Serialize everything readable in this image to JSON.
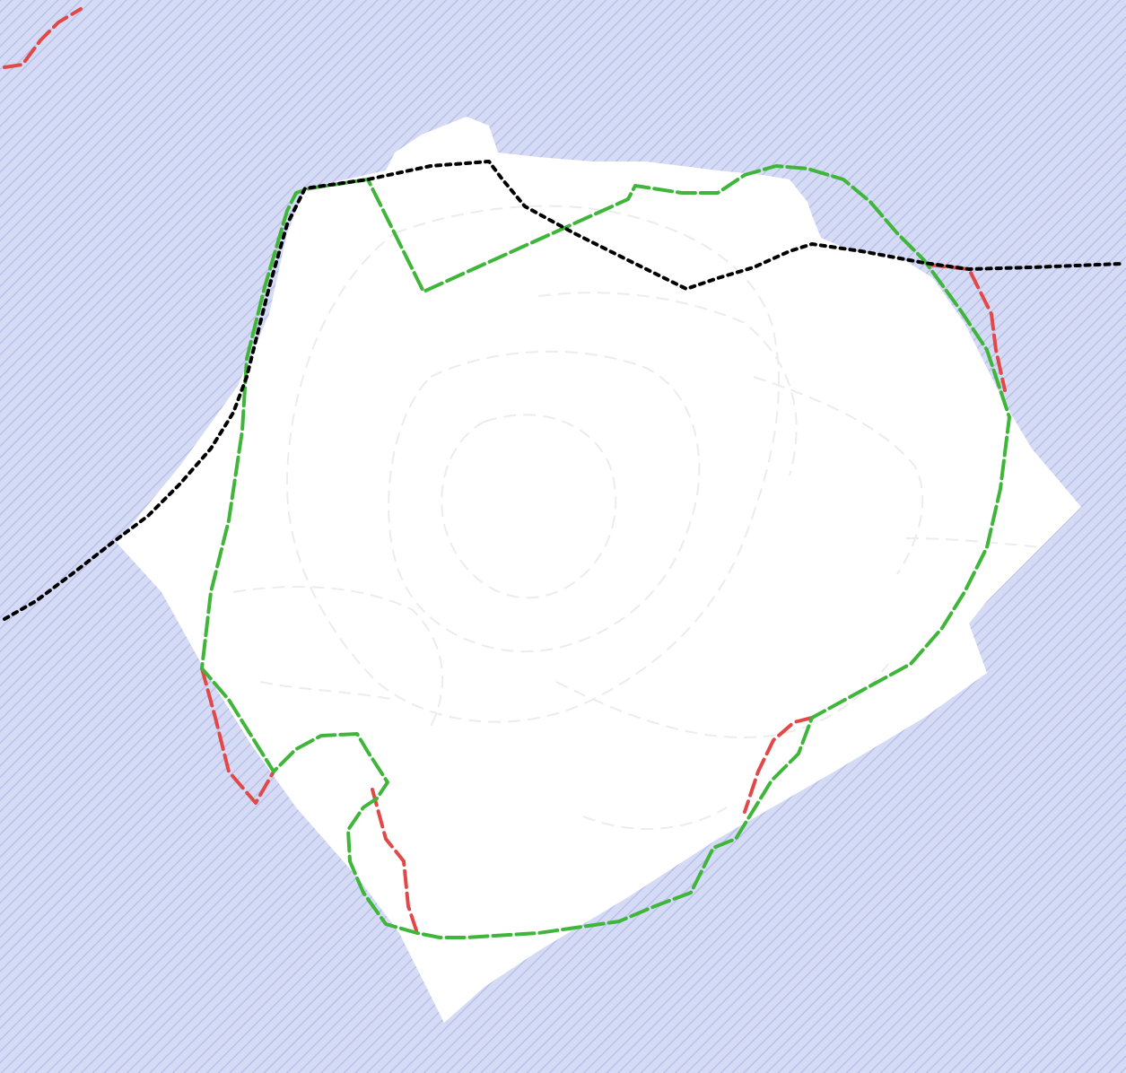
{
  "map": {
    "water_color": "#d6dbf5",
    "water_hatch_color": "#b9c1ea",
    "land_color": "#ffffff",
    "contour_color": "#ececec",
    "boundary_green_color": "#3fb53a",
    "boundary_red_color": "#e24848",
    "admin_line_color": "#000000"
  }
}
